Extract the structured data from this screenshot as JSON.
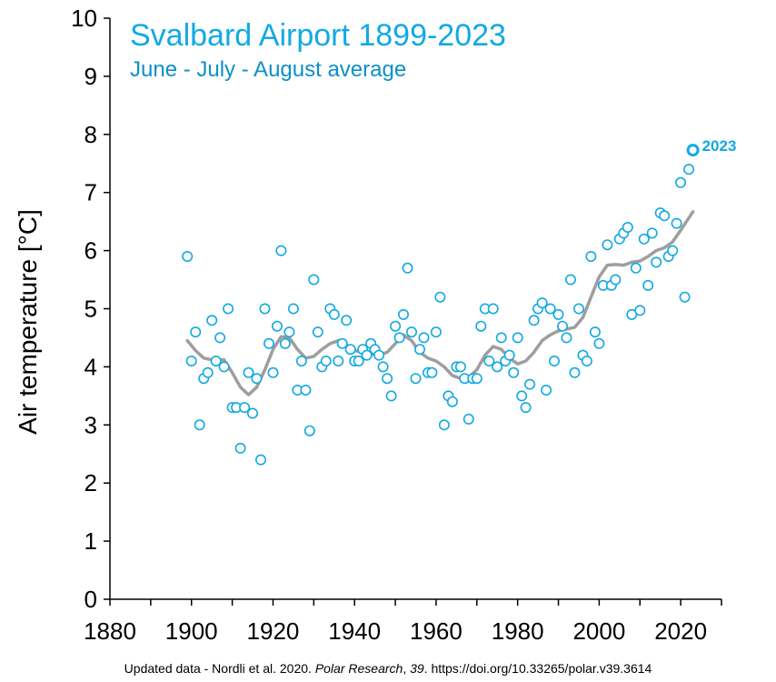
{
  "colors": {
    "accent": "#12a9e2",
    "subtitle": "#0e8fc8",
    "smooth": "#9e9e9e",
    "axis": "#000000"
  },
  "caption": {
    "prefix": "Updated data - Nordli et al. 2020. ",
    "journal": "Polar Research",
    "sep": ", ",
    "volume": "39",
    "suffix": ". https://doi.org/10.33265/polar.v39.3614"
  },
  "chart_data": {
    "type": "scatter",
    "title": "Svalbard Airport 1899-2023",
    "subtitle": "June - July - August average",
    "ylabel": "Air temperature [°C]",
    "xlabel": "",
    "xlim": [
      1880,
      2030
    ],
    "ylim": [
      0,
      10
    ],
    "xticks": [
      1880,
      1900,
      1920,
      1940,
      1960,
      1980,
      2000,
      2020
    ],
    "yticks": [
      0,
      1,
      2,
      3,
      4,
      5,
      6,
      7,
      8,
      9,
      10
    ],
    "grid": false,
    "annotation": {
      "label": "2023",
      "x": 2023,
      "y": 7.73
    },
    "series": [
      {
        "x": [
          1899,
          1900,
          1901,
          1902,
          1903,
          1904,
          1905,
          1906,
          1907,
          1908,
          1909,
          1910,
          1911,
          1912,
          1913,
          1914,
          1915,
          1916,
          1917,
          1918,
          1919,
          1920,
          1921,
          1922,
          1923,
          1924,
          1925,
          1926,
          1927,
          1928,
          1929,
          1930,
          1931,
          1932,
          1933,
          1934,
          1935,
          1936,
          1937,
          1938,
          1939,
          1940,
          1941,
          1942,
          1943,
          1944,
          1945,
          1946,
          1947,
          1948,
          1949,
          1950,
          1951,
          1952,
          1953,
          1954,
          1955,
          1956,
          1957,
          1958,
          1959,
          1960,
          1961,
          1962,
          1963,
          1964,
          1965,
          1966,
          1967,
          1968,
          1969,
          1970,
          1971,
          1972,
          1973,
          1974,
          1975,
          1976,
          1977,
          1978,
          1979,
          1980,
          1981,
          1982,
          1983,
          1984,
          1985,
          1986,
          1987,
          1988,
          1989,
          1990,
          1991,
          1992,
          1993,
          1994,
          1995,
          1996,
          1997,
          1998,
          1999,
          2000,
          2001,
          2002,
          2003,
          2004,
          2005,
          2006,
          2007,
          2008,
          2009,
          2010,
          2011,
          2012,
          2013,
          2014,
          2015,
          2016,
          2017,
          2018,
          2019,
          2020,
          2021,
          2022,
          2023
        ],
        "values": [
          5.9,
          4.1,
          4.6,
          3.0,
          3.8,
          3.9,
          4.8,
          4.1,
          4.5,
          4.0,
          5.0,
          3.3,
          3.3,
          2.6,
          3.3,
          3.9,
          3.2,
          3.8,
          2.4,
          5.0,
          4.4,
          3.9,
          4.7,
          6.0,
          4.4,
          4.6,
          5.0,
          3.6,
          4.1,
          3.6,
          2.9,
          5.5,
          4.6,
          4.0,
          4.1,
          5.0,
          4.9,
          4.1,
          4.4,
          4.8,
          4.3,
          4.1,
          4.1,
          4.3,
          4.2,
          4.4,
          4.3,
          4.2,
          4.0,
          3.8,
          3.5,
          4.7,
          4.5,
          4.9,
          5.7,
          4.6,
          3.8,
          4.3,
          4.5,
          3.9,
          3.9,
          4.6,
          5.2,
          3.0,
          3.5,
          3.4,
          4.0,
          4.0,
          3.8,
          3.1,
          3.8,
          3.8,
          4.7,
          5.0,
          4.1,
          5.0,
          4.0,
          4.5,
          4.1,
          4.2,
          3.9,
          4.5,
          3.5,
          3.3,
          3.7,
          4.8,
          5.0,
          5.1,
          3.6,
          5.0,
          4.1,
          4.9,
          4.7,
          4.5,
          5.5,
          3.9,
          5.0,
          4.2,
          4.1,
          5.9,
          4.6,
          4.4,
          5.4,
          6.1,
          5.4,
          5.5,
          6.2,
          6.3,
          6.4,
          4.9,
          5.7,
          4.97,
          6.2,
          5.4,
          6.3,
          5.8,
          6.65,
          6.6,
          5.9,
          6.0,
          6.47,
          7.17,
          5.2,
          7.4,
          7.73
        ]
      },
      {
        "name": "",
        "style": "smooth",
        "x": [
          1899,
          1901,
          1903,
          1905,
          1908,
          1910,
          1912,
          1914,
          1916,
          1918,
          1920,
          1922,
          1924,
          1926,
          1928,
          1930,
          1932,
          1934,
          1936,
          1938,
          1940,
          1942,
          1944,
          1946,
          1948,
          1950,
          1952,
          1954,
          1956,
          1958,
          1960,
          1962,
          1964,
          1966,
          1968,
          1970,
          1972,
          1974,
          1976,
          1978,
          1980,
          1982,
          1984,
          1986,
          1988,
          1990,
          1992,
          1994,
          1996,
          1998,
          2000,
          2002,
          2004,
          2006,
          2008,
          2010,
          2012,
          2014,
          2016,
          2018,
          2020,
          2023
        ],
        "values": [
          4.45,
          4.28,
          4.15,
          4.12,
          4.12,
          3.9,
          3.65,
          3.52,
          3.65,
          3.95,
          4.3,
          4.52,
          4.5,
          4.3,
          4.15,
          4.18,
          4.3,
          4.4,
          4.45,
          4.38,
          4.28,
          4.25,
          4.22,
          4.2,
          4.25,
          4.4,
          4.55,
          4.45,
          4.25,
          4.15,
          4.1,
          4.0,
          3.85,
          3.8,
          3.82,
          3.95,
          4.2,
          4.35,
          4.3,
          4.15,
          4.05,
          4.1,
          4.25,
          4.45,
          4.55,
          4.62,
          4.65,
          4.68,
          4.85,
          5.2,
          5.55,
          5.75,
          5.76,
          5.75,
          5.8,
          5.82,
          5.9,
          6.0,
          6.05,
          6.15,
          6.35,
          6.67
        ]
      }
    ]
  }
}
